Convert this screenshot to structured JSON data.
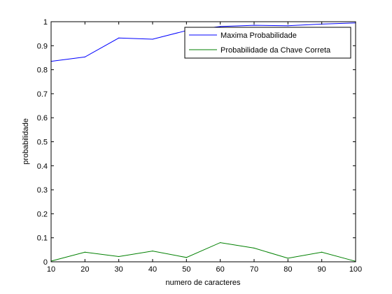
{
  "chart_data": {
    "type": "line",
    "title": "",
    "xlabel": "numero de caracteres",
    "ylabel": "probabilidade",
    "xlim": [
      10,
      100
    ],
    "ylim": [
      0,
      1
    ],
    "xticks": [
      "10",
      "20",
      "30",
      "40",
      "50",
      "60",
      "70",
      "80",
      "90",
      "100"
    ],
    "yticks": [
      "0",
      "0.1",
      "0.2",
      "0.3",
      "0.4",
      "0.5",
      "0.6",
      "0.7",
      "0.8",
      "0.9",
      "1"
    ],
    "grid": false,
    "legend_position": "top-right",
    "x": [
      10,
      20,
      30,
      40,
      50,
      60,
      70,
      80,
      90,
      100
    ],
    "series": [
      {
        "name": "Maxima Probabilidade",
        "color": "#0000ff",
        "values": [
          0.835,
          0.853,
          0.932,
          0.927,
          0.963,
          0.98,
          0.985,
          0.983,
          0.99,
          0.995
        ]
      },
      {
        "name": "Probabilidade da Chave Correta",
        "color": "#008000",
        "values": [
          0.003,
          0.04,
          0.022,
          0.045,
          0.018,
          0.08,
          0.057,
          0.015,
          0.04,
          0.002
        ]
      }
    ]
  }
}
